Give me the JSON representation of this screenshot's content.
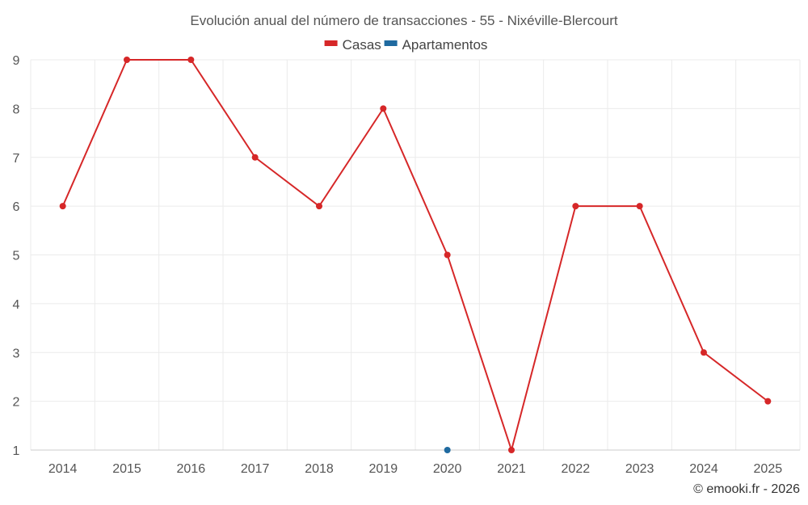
{
  "chart_data": {
    "type": "line",
    "title": "Evolución anual del número de transacciones - 55 - Nixéville-Blercourt",
    "x": [
      "2014",
      "2015",
      "2016",
      "2017",
      "2018",
      "2019",
      "2020",
      "2021",
      "2022",
      "2023",
      "2024",
      "2025"
    ],
    "ylim": [
      1,
      9
    ],
    "yticks": [
      "1",
      "2",
      "3",
      "4",
      "5",
      "6",
      "7",
      "8",
      "9"
    ],
    "grid": true,
    "legend_position": "top-center",
    "series": [
      {
        "name": "Casas",
        "color": "#d62728",
        "values": [
          6,
          9,
          9,
          7,
          6,
          8,
          5,
          1,
          6,
          6,
          3,
          2
        ]
      },
      {
        "name": "Apartamentos",
        "color": "#1f6aa0",
        "values": [
          null,
          null,
          null,
          null,
          null,
          null,
          1,
          null,
          null,
          null,
          null,
          null
        ]
      }
    ],
    "credit": "© emooki.fr - 2026"
  }
}
